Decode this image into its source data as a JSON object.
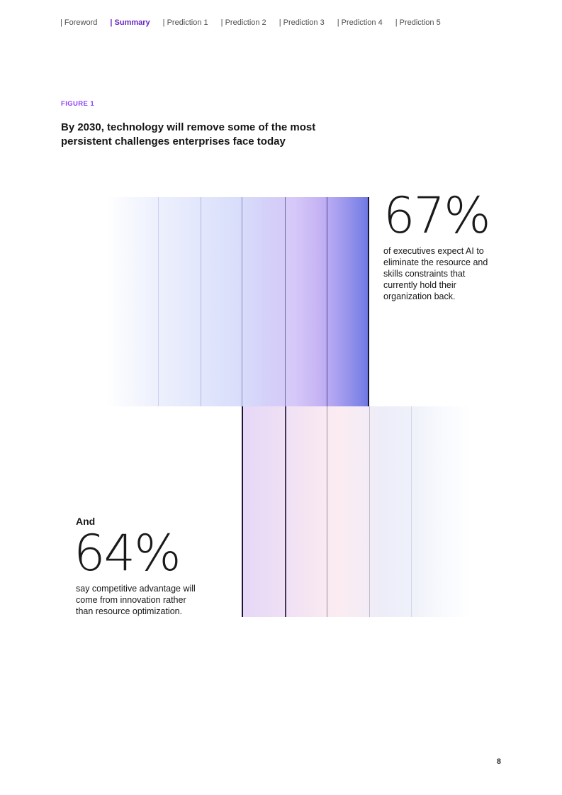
{
  "nav": {
    "items": [
      {
        "label": "| Foreword",
        "active": false
      },
      {
        "label": "| Summary",
        "active": true
      },
      {
        "label": "| Prediction 1",
        "active": false
      },
      {
        "label": "| Prediction 2",
        "active": false
      },
      {
        "label": "| Prediction 3",
        "active": false
      },
      {
        "label": "| Prediction 4",
        "active": false
      },
      {
        "label": "| Prediction 5",
        "active": false
      }
    ]
  },
  "figure": {
    "label": "FIGURE 1",
    "title": "By 2030, technology will remove some of the most\npersistent challenges enterprises face today"
  },
  "stats": {
    "stat1": {
      "value": "67%",
      "description": "of executives expect AI to\neliminate the resource and\nskills constraints that\ncurrently hold their\norganization back."
    },
    "stat2": {
      "connector": "And",
      "value": "64%",
      "description": "say competitive advantage will\ncome from innovation rather\nthan resource optimization."
    }
  },
  "page": {
    "number": "8"
  },
  "colors": {
    "active_nav_purple": "#6929c4",
    "figure_label_purple": "#8a3ffc",
    "nav_gray": "#4d4d4d",
    "text": "#161616",
    "gradient_top_end_blue": "#6f76e0",
    "gradient_bottom_start_lavender": "#e6d7f7",
    "gradient_bottom_pink": "#fbecf2"
  }
}
